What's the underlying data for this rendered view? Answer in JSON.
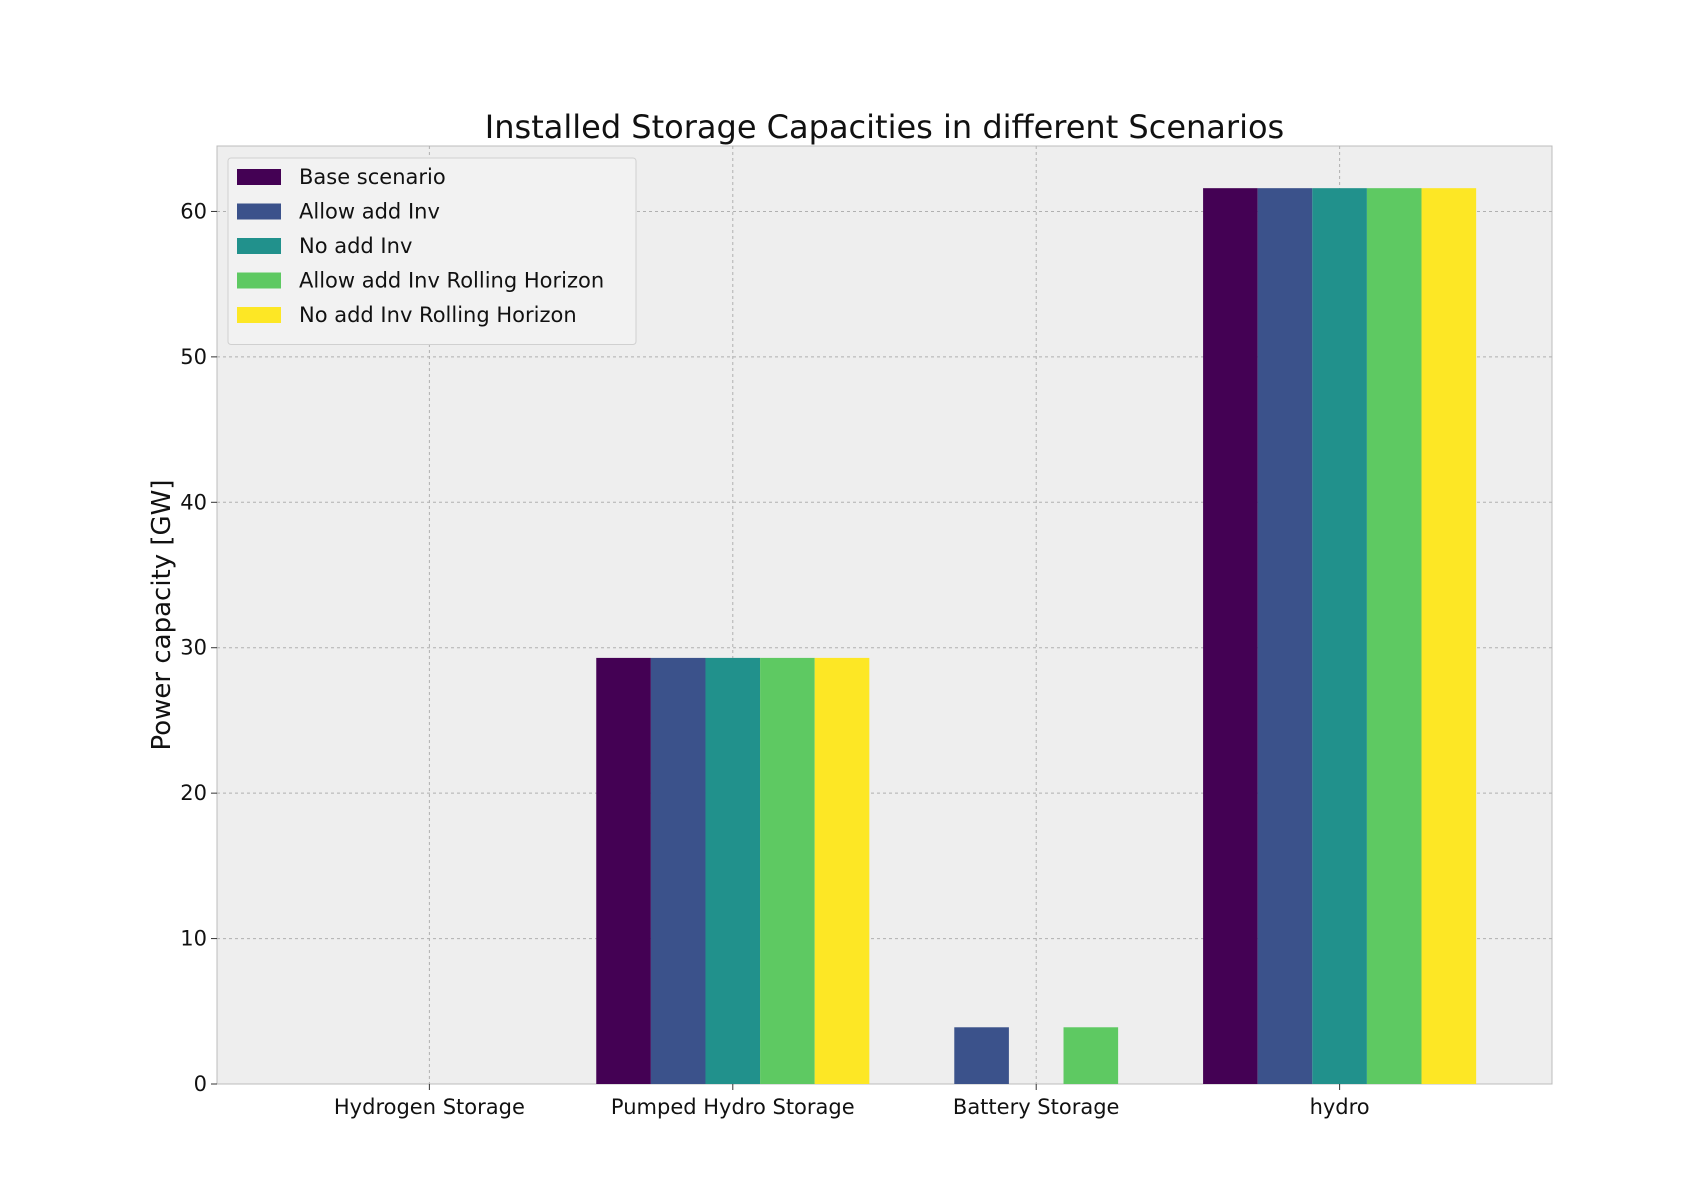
{
  "chart_data": {
    "type": "bar",
    "title": "Installed Storage Capacities in different Scenarios",
    "xlabel": "",
    "ylabel": "Power capacity [GW]",
    "ylim": [
      0,
      64.5
    ],
    "yticks": [
      0,
      10,
      20,
      30,
      40,
      50,
      60
    ],
    "categories": [
      "Hydrogen Storage",
      "Pumped Hydro Storage",
      "Battery Storage",
      "hydro"
    ],
    "series": [
      {
        "name": "Base scenario",
        "color": "#440154",
        "values": [
          0,
          29.3,
          0,
          61.6
        ]
      },
      {
        "name": "Allow add Inv",
        "color": "#3b528b",
        "values": [
          0,
          29.3,
          3.9,
          61.6
        ]
      },
      {
        "name": "No add Inv",
        "color": "#21918c",
        "values": [
          0,
          29.3,
          0,
          61.6
        ]
      },
      {
        "name": "Allow add Inv Rolling Horizon",
        "color": "#5ec962",
        "values": [
          0,
          29.3,
          3.9,
          61.6
        ]
      },
      {
        "name": "No add Inv Rolling Horizon",
        "color": "#fde725",
        "values": [
          0,
          29.3,
          0,
          61.6
        ]
      }
    ],
    "grid": true,
    "legend_position": "top-left",
    "plot_background": "#eeeeee"
  }
}
